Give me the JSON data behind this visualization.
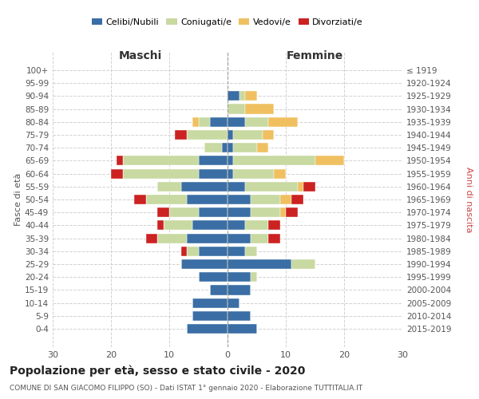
{
  "age_groups": [
    "100+",
    "95-99",
    "90-94",
    "85-89",
    "80-84",
    "75-79",
    "70-74",
    "65-69",
    "60-64",
    "55-59",
    "50-54",
    "45-49",
    "40-44",
    "35-39",
    "30-34",
    "25-29",
    "20-24",
    "15-19",
    "10-14",
    "5-9",
    "0-4"
  ],
  "birth_years": [
    "≤ 1919",
    "1920-1924",
    "1925-1929",
    "1930-1934",
    "1935-1939",
    "1940-1944",
    "1945-1949",
    "1950-1954",
    "1955-1959",
    "1960-1964",
    "1965-1969",
    "1970-1974",
    "1975-1979",
    "1980-1984",
    "1985-1989",
    "1990-1994",
    "1995-1999",
    "2000-2004",
    "2005-2009",
    "2010-2014",
    "2015-2019"
  ],
  "males": {
    "celibe": [
      0,
      0,
      0,
      0,
      3,
      0,
      1,
      5,
      5,
      8,
      7,
      5,
      6,
      7,
      5,
      8,
      5,
      3,
      6,
      6,
      7
    ],
    "coniugato": [
      0,
      0,
      0,
      0,
      2,
      7,
      3,
      13,
      13,
      4,
      7,
      5,
      5,
      5,
      2,
      0,
      0,
      0,
      0,
      0,
      0
    ],
    "vedovo": [
      0,
      0,
      0,
      0,
      1,
      0,
      0,
      0,
      0,
      0,
      0,
      0,
      0,
      0,
      0,
      0,
      0,
      0,
      0,
      0,
      0
    ],
    "divorziato": [
      0,
      0,
      0,
      0,
      0,
      2,
      0,
      1,
      2,
      0,
      2,
      2,
      1,
      2,
      1,
      0,
      0,
      0,
      0,
      0,
      0
    ]
  },
  "females": {
    "nubile": [
      0,
      0,
      2,
      0,
      3,
      1,
      1,
      1,
      1,
      3,
      4,
      4,
      3,
      4,
      3,
      11,
      4,
      4,
      2,
      4,
      5
    ],
    "coniugata": [
      0,
      0,
      1,
      3,
      4,
      5,
      4,
      14,
      7,
      9,
      5,
      5,
      4,
      3,
      2,
      4,
      1,
      0,
      0,
      0,
      0
    ],
    "vedova": [
      0,
      0,
      2,
      5,
      5,
      2,
      2,
      5,
      2,
      1,
      2,
      1,
      0,
      0,
      0,
      0,
      0,
      0,
      0,
      0,
      0
    ],
    "divorziata": [
      0,
      0,
      0,
      0,
      0,
      0,
      0,
      0,
      0,
      2,
      2,
      2,
      2,
      2,
      0,
      0,
      0,
      0,
      0,
      0,
      0
    ]
  },
  "colors": {
    "celibe": "#3a6ea5",
    "coniugato": "#c8d9a2",
    "vedovo": "#f0c060",
    "divorziato": "#cc2222"
  },
  "title": "Popolazione per età, sesso e stato civile - 2020",
  "subtitle": "COMUNE DI SAN GIACOMO FILIPPO (SO) - Dati ISTAT 1° gennaio 2020 - Elaborazione TUTTITALIA.IT",
  "label_maschi": "Maschi",
  "label_femmine": "Femmine",
  "ylabel_left": "Fasce di età",
  "ylabel_right": "Anni di nascita",
  "xlim": 30,
  "background_color": "#ffffff",
  "grid_color": "#cccccc",
  "legend_labels": [
    "Celibi/Nubili",
    "Coniugati/e",
    "Vedovi/e",
    "Divorziati/e"
  ]
}
